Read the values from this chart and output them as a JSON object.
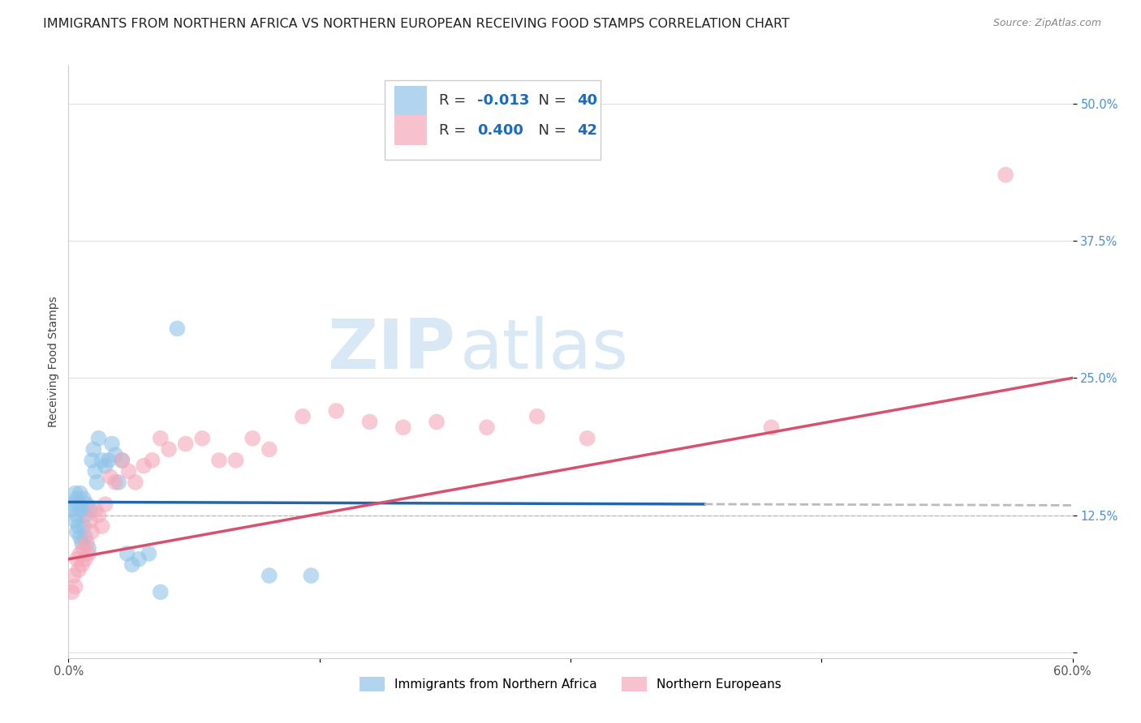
{
  "title": "IMMIGRANTS FROM NORTHERN AFRICA VS NORTHERN EUROPEAN RECEIVING FOOD STAMPS CORRELATION CHART",
  "source": "Source: ZipAtlas.com",
  "ylabel": "Receiving Food Stamps",
  "xlim": [
    0.0,
    0.6
  ],
  "ylim": [
    -0.005,
    0.535
  ],
  "xticks": [
    0.0,
    0.15,
    0.3,
    0.45,
    0.6
  ],
  "yticks_right": [
    0.0,
    0.125,
    0.25,
    0.375,
    0.5
  ],
  "ytick_labels_right": [
    "",
    "12.5%",
    "25.0%",
    "37.5%",
    "50.0%"
  ],
  "bottom_legend_blue": "Immigrants from Northern Africa",
  "bottom_legend_pink": "Northern Europeans",
  "blue_color": "#90c4e8",
  "blue_line_color": "#2166ac",
  "pink_color": "#f4a7b9",
  "pink_line_color": "#d94f6e",
  "watermark_zip": "ZIP",
  "watermark_atlas": "atlas",
  "watermark_color": "#d8e8f5",
  "dashed_line_color": "#bbbbbb",
  "grid_color": "#e0e0e0",
  "background_color": "#ffffff",
  "blue_x": [
    0.002,
    0.003,
    0.004,
    0.004,
    0.005,
    0.005,
    0.005,
    0.006,
    0.006,
    0.007,
    0.007,
    0.008,
    0.008,
    0.009,
    0.009,
    0.01,
    0.01,
    0.011,
    0.012,
    0.013,
    0.014,
    0.015,
    0.016,
    0.017,
    0.018,
    0.02,
    0.022,
    0.024,
    0.026,
    0.028,
    0.03,
    0.032,
    0.035,
    0.038,
    0.042,
    0.048,
    0.055,
    0.065,
    0.12,
    0.145
  ],
  "blue_y": [
    0.13,
    0.135,
    0.12,
    0.145,
    0.125,
    0.11,
    0.14,
    0.115,
    0.135,
    0.105,
    0.145,
    0.1,
    0.13,
    0.115,
    0.14,
    0.125,
    0.105,
    0.135,
    0.095,
    0.13,
    0.175,
    0.185,
    0.165,
    0.155,
    0.195,
    0.175,
    0.17,
    0.175,
    0.19,
    0.18,
    0.155,
    0.175,
    0.09,
    0.08,
    0.085,
    0.09,
    0.055,
    0.295,
    0.07,
    0.07
  ],
  "pink_x": [
    0.002,
    0.003,
    0.004,
    0.005,
    0.006,
    0.007,
    0.008,
    0.009,
    0.01,
    0.011,
    0.012,
    0.013,
    0.014,
    0.016,
    0.018,
    0.02,
    0.022,
    0.025,
    0.028,
    0.032,
    0.036,
    0.04,
    0.045,
    0.05,
    0.055,
    0.06,
    0.07,
    0.08,
    0.09,
    0.1,
    0.11,
    0.12,
    0.14,
    0.16,
    0.18,
    0.2,
    0.22,
    0.25,
    0.28,
    0.31,
    0.42,
    0.56
  ],
  "pink_y": [
    0.055,
    0.07,
    0.06,
    0.085,
    0.075,
    0.09,
    0.08,
    0.095,
    0.085,
    0.1,
    0.09,
    0.12,
    0.11,
    0.13,
    0.125,
    0.115,
    0.135,
    0.16,
    0.155,
    0.175,
    0.165,
    0.155,
    0.17,
    0.175,
    0.195,
    0.185,
    0.19,
    0.195,
    0.175,
    0.175,
    0.195,
    0.185,
    0.215,
    0.22,
    0.21,
    0.205,
    0.21,
    0.205,
    0.215,
    0.195,
    0.205,
    0.435
  ],
  "blue_line_start_x": 0.0,
  "blue_line_end_solid_x": 0.38,
  "blue_line_end_x": 0.6,
  "blue_line_y_intercept": 0.137,
  "blue_line_slope": -0.005,
  "pink_line_start_x": 0.0,
  "pink_line_end_x": 0.6,
  "pink_line_y_intercept": 0.085,
  "pink_line_slope": 0.275,
  "title_fontsize": 11.5,
  "source_fontsize": 9,
  "axis_label_fontsize": 10,
  "tick_fontsize": 10.5,
  "legend_fontsize": 13
}
